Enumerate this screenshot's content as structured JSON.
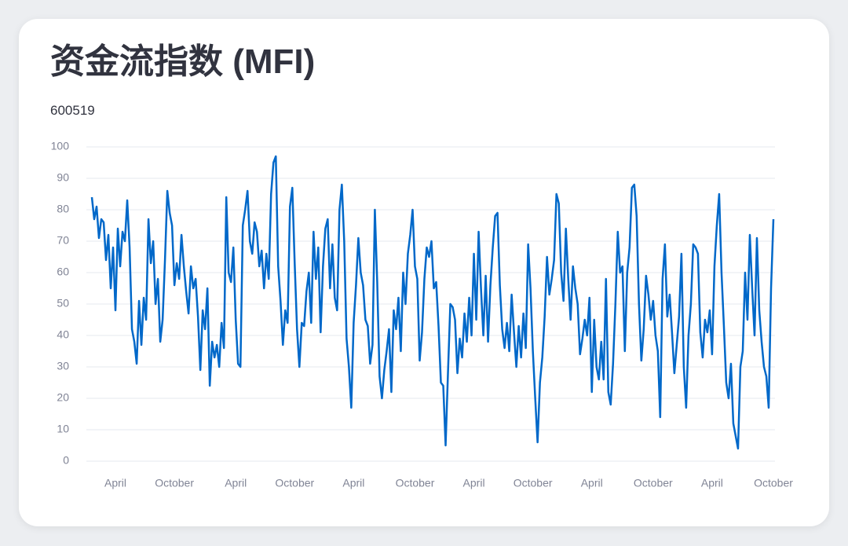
{
  "chart_data": {
    "type": "line",
    "title": "资金流指数 (MFI)",
    "subtitle": "600519",
    "categories": [
      null,
      null,
      null,
      null,
      null,
      null,
      null,
      null,
      null,
      null,
      "April",
      null,
      null,
      null,
      null,
      null,
      null,
      null,
      null,
      null,
      null,
      null,
      null,
      null,
      null,
      null,
      null,
      null,
      null,
      null,
      null,
      null,
      null,
      null,
      null,
      "October",
      null,
      null,
      null,
      null,
      null,
      null,
      null,
      null,
      null,
      null,
      null,
      null,
      null,
      null,
      null,
      null,
      null,
      null,
      null,
      null,
      null,
      null,
      null,
      null,
      null,
      "April",
      null,
      null,
      null,
      null,
      null,
      null,
      null,
      null,
      null,
      null,
      null,
      null,
      null,
      null,
      null,
      null,
      null,
      null,
      null,
      null,
      null,
      null,
      null,
      null,
      "October",
      null,
      null,
      null,
      null,
      null,
      null,
      null,
      null,
      null,
      null,
      null,
      null,
      null,
      null,
      null,
      null,
      null,
      null,
      null,
      null,
      null,
      null,
      null,
      null,
      "April",
      null,
      null,
      null,
      null,
      null,
      null,
      null,
      null,
      null,
      null,
      null,
      null,
      null,
      null,
      null,
      null,
      null,
      null,
      null,
      null,
      null,
      null,
      null,
      null,
      null,
      "October",
      null,
      null,
      null,
      null,
      null,
      null,
      null,
      null,
      null,
      null,
      null,
      null,
      null,
      null,
      null,
      null,
      null,
      null,
      null,
      null,
      null,
      null,
      null,
      null,
      "April",
      null,
      null,
      null,
      null,
      null,
      null,
      null,
      null,
      null,
      null,
      null,
      null,
      null,
      null,
      null,
      null,
      null,
      null,
      null,
      null,
      null,
      null,
      null,
      null,
      "October",
      null,
      null,
      null,
      null,
      null,
      null,
      null,
      null,
      null,
      null,
      null,
      null,
      null,
      null,
      null,
      null,
      null,
      null,
      null,
      null,
      null,
      null,
      null,
      null,
      "April",
      null,
      null,
      null,
      null,
      null,
      null,
      null,
      null,
      null,
      null,
      null,
      null,
      null,
      null,
      null,
      null,
      null,
      null,
      null,
      null,
      null,
      null,
      null,
      null,
      null,
      "October",
      null,
      null,
      null,
      null,
      null,
      null,
      null,
      null,
      null,
      null,
      null,
      null,
      null,
      null,
      null,
      null,
      null,
      null,
      null,
      null,
      null,
      null,
      null,
      null,
      "April",
      null,
      null,
      null,
      null,
      null,
      null,
      null,
      null,
      null,
      null,
      null,
      null,
      null,
      null,
      null,
      null,
      null,
      null,
      null,
      null,
      null,
      null,
      null,
      null,
      null,
      "October"
    ],
    "values": [
      84,
      77,
      81,
      71,
      77,
      76,
      64,
      72,
      55,
      68,
      48,
      74,
      62,
      73,
      70,
      83,
      68,
      42,
      38,
      31,
      51,
      37,
      52,
      45,
      77,
      63,
      70,
      50,
      58,
      38,
      45,
      64,
      86,
      79,
      75,
      56,
      63,
      58,
      72,
      62,
      54,
      47,
      62,
      55,
      58,
      46,
      29,
      48,
      42,
      55,
      24,
      38,
      33,
      37,
      30,
      44,
      36,
      84,
      60,
      57,
      68,
      45,
      31,
      30,
      75,
      80,
      86,
      70,
      66,
      76,
      73,
      62,
      67,
      55,
      66,
      58,
      85,
      95,
      97,
      62,
      51,
      37,
      48,
      44,
      81,
      87,
      63,
      42,
      30,
      44,
      43,
      54,
      60,
      44,
      73,
      58,
      68,
      41,
      62,
      74,
      77,
      55,
      69,
      52,
      48,
      80,
      88,
      70,
      39,
      30,
      17,
      44,
      56,
      71,
      60,
      56,
      45,
      43,
      31,
      37,
      80,
      57,
      27,
      20,
      29,
      35,
      42,
      22,
      48,
      42,
      52,
      35,
      60,
      50,
      66,
      72,
      80,
      62,
      58,
      32,
      41,
      58,
      68,
      65,
      70,
      55,
      57,
      43,
      25,
      24,
      5,
      28,
      50,
      49,
      45,
      28,
      39,
      33,
      47,
      38,
      52,
      40,
      66,
      45,
      73,
      55,
      40,
      59,
      38,
      56,
      68,
      78,
      79,
      56,
      42,
      36,
      44,
      35,
      53,
      41,
      30,
      43,
      33,
      47,
      36,
      69,
      55,
      35,
      20,
      6,
      25,
      33,
      46,
      65,
      53,
      58,
      64,
      85,
      82,
      60,
      51,
      74,
      58,
      45,
      62,
      55,
      50,
      34,
      39,
      45,
      40,
      52,
      22,
      45,
      30,
      26,
      38,
      26,
      58,
      22,
      18,
      31,
      50,
      73,
      60,
      62,
      35,
      60,
      68,
      87,
      88,
      78,
      50,
      32,
      42,
      59,
      53,
      45,
      51,
      40,
      35,
      14,
      58,
      69,
      46,
      53,
      41,
      28,
      37,
      46,
      66,
      30,
      17,
      40,
      50,
      69,
      68,
      66,
      41,
      33,
      45,
      41,
      48,
      34,
      62,
      75,
      85,
      60,
      43,
      25,
      20,
      31,
      12,
      8,
      4,
      30,
      35,
      60,
      45,
      72,
      55,
      40,
      71,
      48,
      38,
      30,
      27,
      17,
      55,
      77
    ],
    "color": "#0068c9",
    "ylim": [
      0,
      100
    ],
    "yticks": [
      0,
      10,
      20,
      30,
      40,
      50,
      60,
      70,
      80,
      90,
      100
    ],
    "grid": true
  }
}
